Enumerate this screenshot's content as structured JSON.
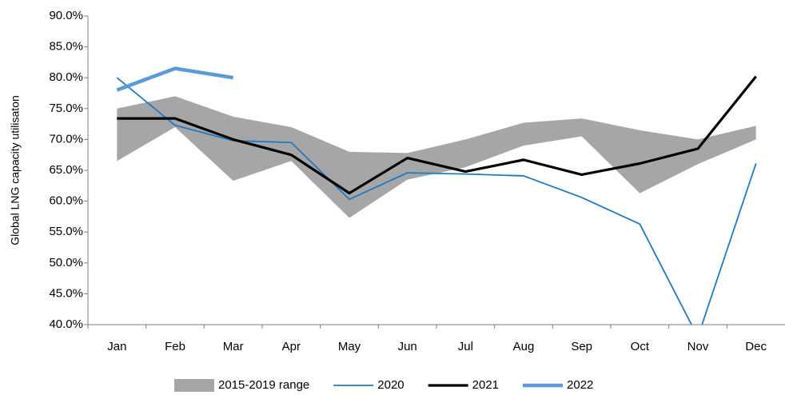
{
  "chart_data": {
    "type": "line",
    "y_label": "Global LNG capacity utilisaton",
    "categories": [
      "Jan",
      "Feb",
      "Mar",
      "Apr",
      "May",
      "Jun",
      "Jul",
      "Aug",
      "Sep",
      "Oct",
      "Nov",
      "Dec"
    ],
    "ylim": [
      40,
      90
    ],
    "yticks": [
      {
        "value": 40,
        "label": "40.0%"
      },
      {
        "value": 45,
        "label": "45.0%"
      },
      {
        "value": 50,
        "label": "50.0%"
      },
      {
        "value": 55,
        "label": "55.0%"
      },
      {
        "value": 60,
        "label": "60.0%"
      },
      {
        "value": 65,
        "label": "65.0%"
      },
      {
        "value": 70,
        "label": "70.0%"
      },
      {
        "value": 75,
        "label": "75.0%"
      },
      {
        "value": 80,
        "label": "80.0%"
      },
      {
        "value": 85,
        "label": "85.0%"
      },
      {
        "value": 90,
        "label": "90.0%"
      }
    ],
    "grid": false,
    "legend": "bottom",
    "series": [
      {
        "name": "2015-2019 range",
        "kind": "range",
        "color": "#a6a6a6",
        "low": [
          66.5,
          72,
          63.3,
          66.5,
          57.3,
          63.5,
          65.5,
          69,
          70.5,
          61.3,
          66,
          70
        ],
        "high": [
          75,
          77,
          73.7,
          72,
          68,
          67.8,
          70,
          72.7,
          73.4,
          71.5,
          70,
          72.2
        ]
      },
      {
        "name": "2020",
        "color": "#1f7ac4",
        "width": 1.8,
        "values": [
          80,
          72.3,
          69.8,
          69.5,
          60.3,
          64.6,
          64.4,
          64.1,
          60.6,
          56.3,
          38,
          66.1
        ]
      },
      {
        "name": "2021",
        "color": "#000000",
        "width": 3.2,
        "values": [
          73.4,
          73.4,
          70,
          67.5,
          61.3,
          67,
          64.8,
          66.7,
          64.3,
          66.1,
          68.5,
          80.2
        ]
      },
      {
        "name": "2022",
        "color": "#5b9bd5",
        "width": 4.5,
        "values": [
          78,
          81.5,
          80,
          null,
          null,
          null,
          null,
          null,
          null,
          null,
          null,
          null
        ]
      }
    ]
  }
}
